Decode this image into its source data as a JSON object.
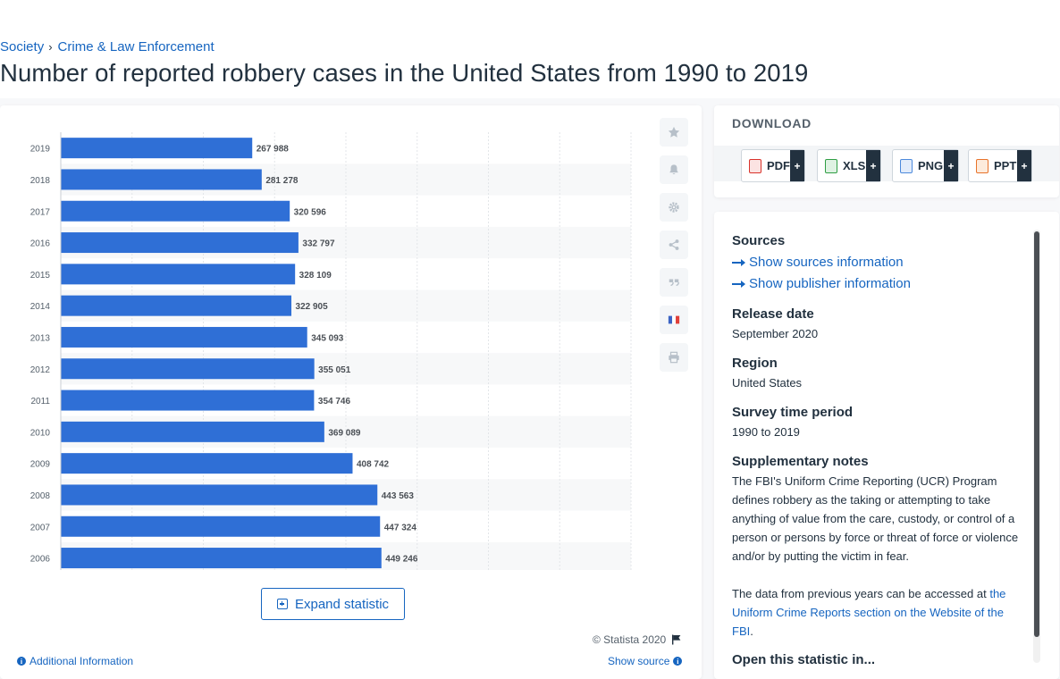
{
  "breadcrumb": {
    "items": [
      "Society",
      "Crime & Law Enforcement"
    ],
    "separator": "›"
  },
  "page_title": "Number of reported robbery cases in the United States from 1990 to 2019",
  "chart_data": {
    "type": "bar",
    "orientation": "horizontal",
    "categories": [
      "2019",
      "2018",
      "2017",
      "2016",
      "2015",
      "2014",
      "2013",
      "2012",
      "2011",
      "2010",
      "2009",
      "2008",
      "2007",
      "2006"
    ],
    "values": [
      267988,
      281278,
      320596,
      332797,
      328109,
      322905,
      345093,
      355051,
      354746,
      369089,
      408742,
      443563,
      447324,
      449246
    ],
    "value_labels": [
      "267 988",
      "281 278",
      "320 596",
      "332 797",
      "328 109",
      "322 905",
      "345 093",
      "355 051",
      "354 746",
      "369 089",
      "408 742",
      "443 563",
      "447 324",
      "449 246"
    ],
    "xlim": [
      0,
      800000
    ],
    "bar_color": "#2f6fd6",
    "grid": true,
    "legend": "none"
  },
  "tools": [
    "star-icon",
    "bell-icon",
    "gear-icon",
    "share-icon",
    "quote-icon",
    "flag-fr-icon",
    "print-icon"
  ],
  "expand_label": "Expand statistic",
  "copyright": "© Statista 2020",
  "additional_info": "Additional Information",
  "show_source": "Show source",
  "download": {
    "title": "DOWNLOAD",
    "buttons": [
      {
        "label": "PDF",
        "color": "#d9322b"
      },
      {
        "label": "XLS",
        "color": "#2f9e44"
      },
      {
        "label": "PNG",
        "color": "#4b89dc"
      },
      {
        "label": "PPT",
        "color": "#e8732a"
      }
    ],
    "plus": "+"
  },
  "meta": {
    "sources_h": "Sources",
    "show_sources": "Show sources information",
    "show_publisher": "Show publisher information",
    "release_h": "Release date",
    "release": "September 2020",
    "region_h": "Region",
    "region": "United States",
    "survey_h": "Survey time period",
    "survey": "1990 to 2019",
    "notes_h": "Supplementary notes",
    "notes_1": "The FBI's Uniform Crime Reporting (UCR) Program defines robbery as the taking or attempting to take anything of value from the care, custody, or control of a person or persons by force or threat of force or violence and/or by putting the victim in fear.",
    "notes_2a": "The data from previous years can be accessed at ",
    "notes_2_link": "the Uniform Crime Reports section on the Website of the FBI",
    "notes_2b": ".",
    "open_h": "Open this statistic in..."
  }
}
